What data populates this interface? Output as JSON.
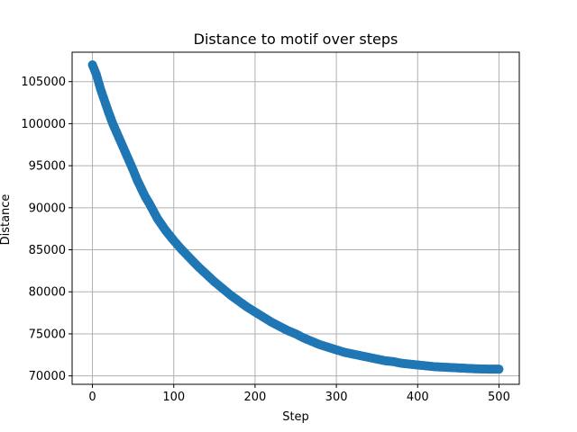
{
  "chart_data": {
    "type": "scatter",
    "title": "Distance to motif over steps",
    "xlabel": "Step",
    "ylabel": "Distance",
    "xlim": [
      -25,
      525
    ],
    "ylim": [
      69000,
      108500
    ],
    "x_ticks": [
      0,
      100,
      200,
      300,
      400,
      500
    ],
    "y_ticks": [
      70000,
      75000,
      80000,
      85000,
      90000,
      95000,
      100000,
      105000
    ],
    "grid": true,
    "legend": "none",
    "marker_color": "#1f77b4",
    "series": [
      {
        "x": [
          0,
          5,
          10,
          15,
          20,
          25,
          30,
          35,
          40,
          45,
          50,
          55,
          60,
          65,
          70,
          75,
          80,
          85,
          90,
          95,
          100,
          110,
          120,
          130,
          140,
          150,
          160,
          170,
          180,
          190,
          200,
          210,
          220,
          230,
          240,
          250,
          260,
          270,
          280,
          290,
          300,
          310,
          320,
          330,
          340,
          350,
          360,
          370,
          380,
          390,
          400,
          410,
          420,
          430,
          440,
          450,
          460,
          470,
          480,
          490,
          500
        ],
        "values": [
          107000,
          105800,
          104100,
          102700,
          101300,
          100000,
          98900,
          97800,
          96700,
          95600,
          94500,
          93300,
          92300,
          91300,
          90500,
          89600,
          88700,
          88000,
          87300,
          86700,
          86100,
          85000,
          84000,
          83000,
          82100,
          81200,
          80400,
          79600,
          78900,
          78200,
          77600,
          77000,
          76400,
          75900,
          75400,
          75000,
          74500,
          74100,
          73700,
          73400,
          73100,
          72800,
          72600,
          72400,
          72200,
          72000,
          71800,
          71700,
          71500,
          71400,
          71300,
          71200,
          71100,
          71050,
          71000,
          70950,
          70900,
          70850,
          70820,
          70800,
          70800
        ]
      }
    ]
  }
}
